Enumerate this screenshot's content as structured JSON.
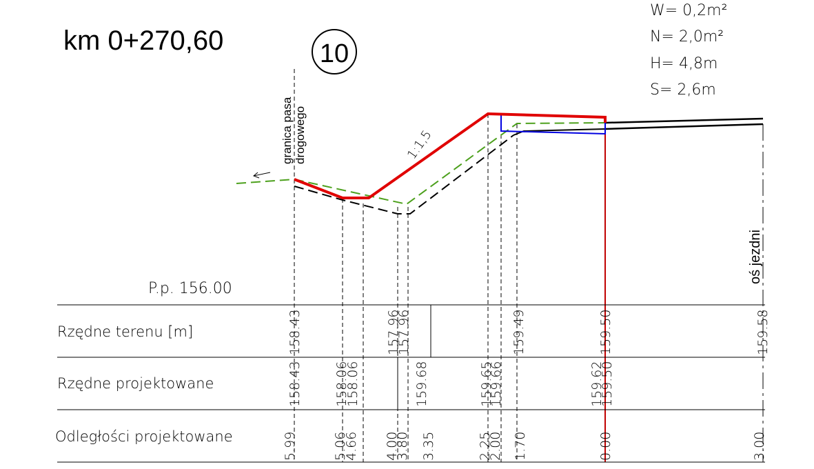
{
  "header": {
    "title": "km 0+270,60",
    "section_number": "10"
  },
  "parameters": [
    "W= 0,2m²",
    "N= 2,0m²",
    "H= 4,8m",
    "S= 2,6m"
  ],
  "annotations": {
    "boundary": [
      "granica pasa",
      "drogowego"
    ],
    "slope": "1:1,5",
    "axis": "oś jezdni",
    "reference_level": "P.p. 156.00"
  },
  "table": {
    "rows": [
      {
        "label": "Rzędne terenu [m]",
        "values": [
          "158.43",
          "157.96",
          "157.96",
          "159.49",
          "159.50",
          "159.58"
        ]
      },
      {
        "label": "Rzędne projektowane",
        "values": [
          "158.43",
          "158.06",
          "158.06",
          "159.68",
          "159.65",
          "159.66",
          "159.62",
          "159.50"
        ]
      },
      {
        "label": "Odległości projektowane",
        "values": [
          "5.99",
          "5.06",
          "4.66",
          "4.00",
          "3.80",
          "3.35",
          "2.25",
          "2.00",
          "1.70",
          "0.00",
          "3.00"
        ]
      }
    ]
  }
}
